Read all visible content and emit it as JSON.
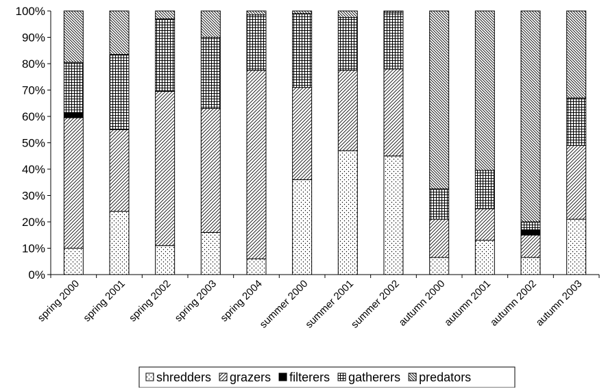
{
  "chart_data": {
    "type": "bar",
    "stacked": true,
    "percent": true,
    "categories": [
      "spring 2000",
      "spring 2001",
      "spring 2002",
      "spring 2003",
      "spring 2004",
      "summer 2000",
      "summer 2001",
      "summer 2002",
      "autumn 2000",
      "autumn 2001",
      "autumn 2002",
      "autumn 2003"
    ],
    "series": [
      {
        "name": "shredders",
        "values": [
          10,
          24,
          11,
          16,
          6,
          36,
          47,
          45,
          6.5,
          13,
          6.5,
          21
        ]
      },
      {
        "name": "grazers",
        "values": [
          49.5,
          31,
          58.5,
          47,
          71.5,
          35,
          30.5,
          33,
          14.5,
          12,
          8.5,
          28
        ]
      },
      {
        "name": "filterers",
        "values": [
          2,
          0,
          0,
          0,
          0,
          0,
          0,
          0,
          0,
          0,
          2,
          0
        ]
      },
      {
        "name": "gatherers",
        "values": [
          19,
          28.5,
          27.5,
          27,
          21,
          28,
          20,
          21.5,
          11.5,
          14.5,
          3,
          18
        ]
      },
      {
        "name": "predators",
        "values": [
          19.5,
          16.5,
          3,
          10,
          1.5,
          1,
          2.5,
          0.5,
          67.5,
          60.5,
          80,
          33
        ]
      }
    ],
    "yticks": [
      "0%",
      "10%",
      "20%",
      "30%",
      "40%",
      "50%",
      "60%",
      "70%",
      "80%",
      "90%",
      "100%"
    ],
    "ylim": [
      0,
      100
    ],
    "title": "",
    "xlabel": "",
    "ylabel": "",
    "grid": false,
    "legend": "bottom"
  }
}
